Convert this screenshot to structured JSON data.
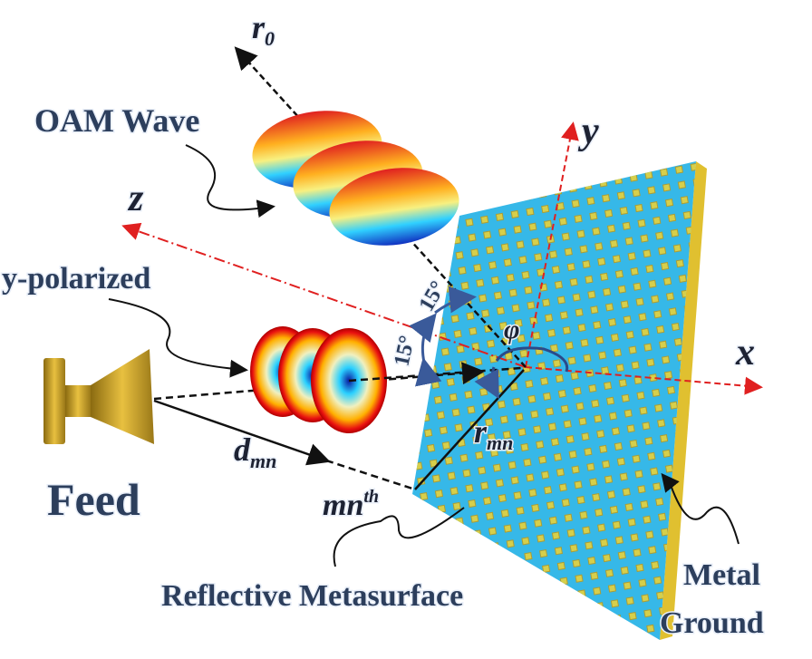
{
  "labels": {
    "r0": {
      "base": "r",
      "sub": "0"
    },
    "oam_wave": "OAM Wave",
    "y_axis": "y",
    "z_axis": "z",
    "x_axis": "x",
    "y_polarized": "y-polarized",
    "angle_1": "15°",
    "angle_2": "15°",
    "phi": "φ",
    "feed": "Feed",
    "d_mn": {
      "base": "d",
      "sub": "mn"
    },
    "r_mn": {
      "base": "r",
      "sub": "mn"
    },
    "mn_th": {
      "base": "mn",
      "sup": "th"
    },
    "metasurface": "Reflective Metasurface",
    "metal_ground": [
      "Metal",
      "Ground"
    ]
  }
}
